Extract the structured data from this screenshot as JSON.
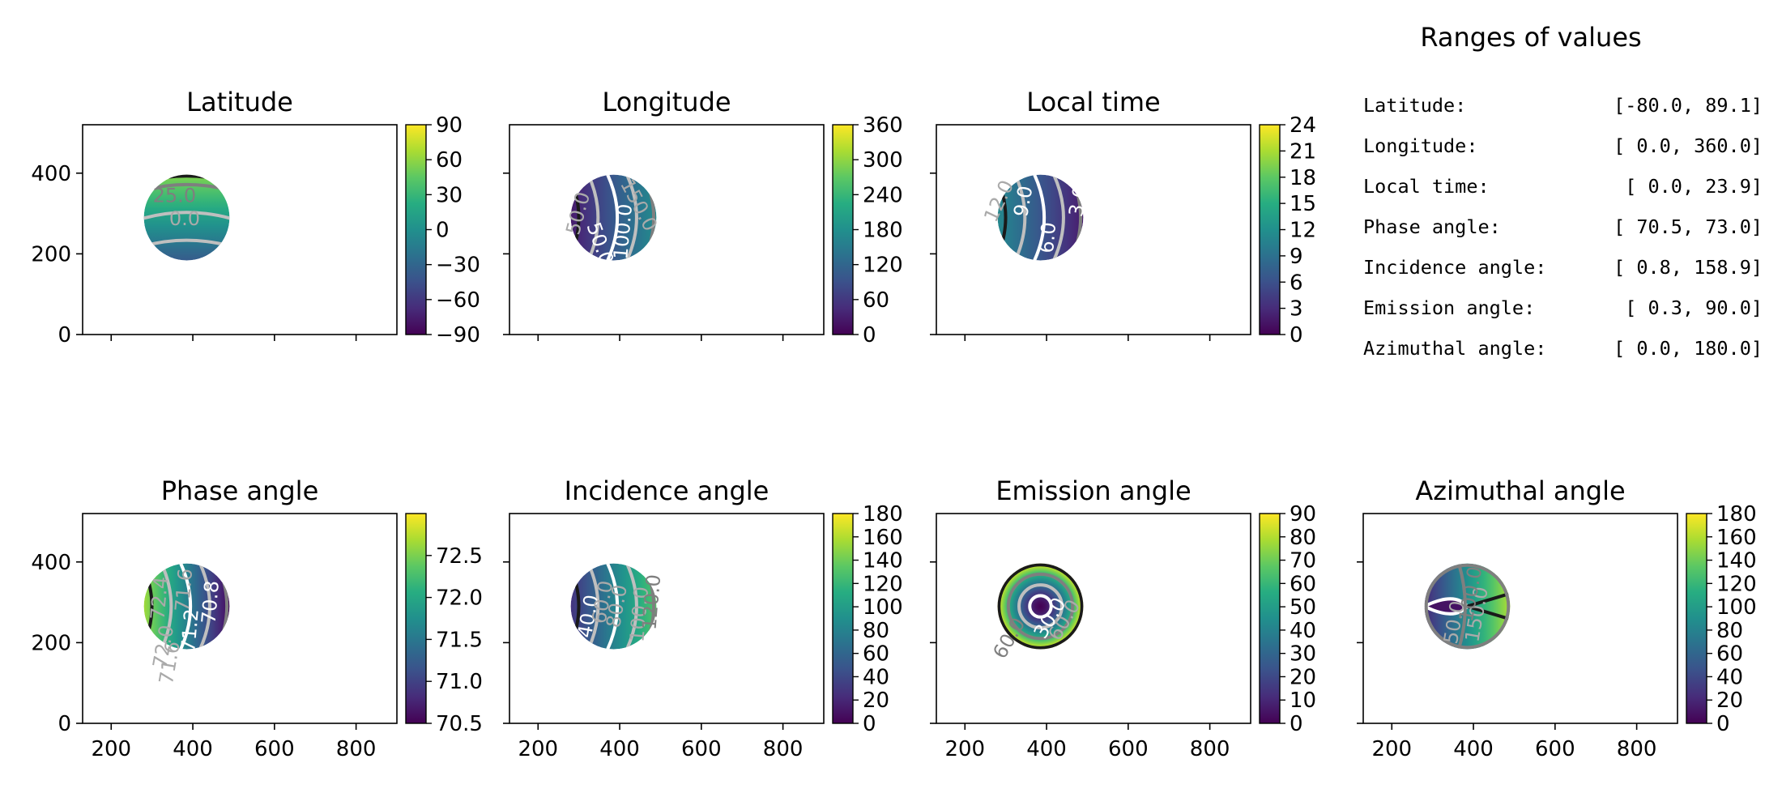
{
  "figure": {
    "width": 2200,
    "height": 1000
  },
  "chart_data": [
    {
      "type": "heatmap",
      "id": "lat",
      "title": "Latitude",
      "xlim": [
        130,
        900
      ],
      "ylim": [
        0,
        520
      ],
      "yticks": [
        0,
        200,
        400
      ],
      "xticks": [
        200,
        400,
        600,
        800
      ],
      "show_xticklabels": false,
      "show_yticklabels": true,
      "disk": {
        "cx": 385,
        "cy": 290,
        "r": 105
      },
      "colorbar": {
        "min": -90,
        "max": 90,
        "ticks": [
          90,
          60,
          30,
          0,
          -30,
          -60,
          -90
        ],
        "tick_labels": [
          "90",
          "60",
          "30",
          "0",
          "−30",
          "−60",
          "−90"
        ]
      },
      "field": {
        "kind": "linear-y",
        "center_value": 10,
        "slope": 0.45
      },
      "contour_labels": [
        {
          "text": "25.0",
          "x": 355,
          "y": 342,
          "color": "#7f7f7f",
          "rot": 0
        },
        {
          "text": "0.0",
          "x": 380,
          "y": 285,
          "color": "#aaaaaa",
          "rot": 0
        }
      ]
    },
    {
      "type": "heatmap",
      "id": "lon",
      "title": "Longitude",
      "xlim": [
        130,
        900
      ],
      "ylim": [
        0,
        520
      ],
      "yticks": [
        0,
        200,
        400
      ],
      "xticks": [
        200,
        400,
        600,
        800
      ],
      "show_xticklabels": false,
      "show_yticklabels": false,
      "disk": {
        "cx": 385,
        "cy": 290,
        "r": 105
      },
      "colorbar": {
        "min": 0,
        "max": 360,
        "ticks": [
          360,
          300,
          240,
          180,
          120,
          60,
          0
        ],
        "tick_labels": [
          "360",
          "300",
          "240",
          "180",
          "120",
          "60",
          "0"
        ]
      },
      "field": {
        "kind": "linear-x",
        "center_value": 100,
        "slope": 0.7
      },
      "contour_labels": [
        {
          "text": "150.0",
          "x": 445,
          "y": 320,
          "color": "#aaaaaa",
          "rot": 62
        },
        {
          "text": "50.0",
          "x": 300,
          "y": 300,
          "color": "#aaaaaa",
          "rot": -75
        },
        {
          "text": "100.0",
          "x": 410,
          "y": 255,
          "color": "#ffffff",
          "rot": -85
        },
        {
          "text": "50.0",
          "x": 350,
          "y": 225,
          "color": "#ffffff",
          "rot": 70
        }
      ]
    },
    {
      "type": "heatmap",
      "id": "lt",
      "title": "Local time",
      "xlim": [
        130,
        900
      ],
      "ylim": [
        0,
        520
      ],
      "yticks": [
        0,
        200,
        400
      ],
      "xticks": [
        200,
        400,
        600,
        800
      ],
      "show_xticklabels": false,
      "show_yticklabels": false,
      "disk": {
        "cx": 385,
        "cy": 290,
        "r": 105
      },
      "colorbar": {
        "min": 0,
        "max": 24,
        "ticks": [
          24,
          21,
          18,
          15,
          12,
          9,
          6,
          3,
          0
        ],
        "tick_labels": [
          "24",
          "21",
          "18",
          "15",
          "12",
          "9",
          "6",
          "3",
          "0"
        ]
      },
      "field": {
        "kind": "linear-x",
        "center_value": 6.5,
        "slope": -0.045
      },
      "contour_labels": [
        {
          "text": "12.0",
          "x": 285,
          "y": 330,
          "color": "#aaaaaa",
          "rot": -65
        },
        {
          "text": "9.0",
          "x": 345,
          "y": 330,
          "color": "#ffffff",
          "rot": -80
        },
        {
          "text": "6.0",
          "x": 405,
          "y": 240,
          "color": "#ffffff",
          "rot": -85
        },
        {
          "text": "3.0",
          "x": 480,
          "y": 330,
          "color": "#ffffff",
          "rot": -80
        }
      ]
    },
    {
      "type": "heatmap",
      "id": "pa",
      "title": "Phase angle",
      "xlim": [
        130,
        900
      ],
      "ylim": [
        0,
        520
      ],
      "yticks": [
        0,
        200,
        400
      ],
      "xticks": [
        200,
        400,
        600,
        800
      ],
      "show_xticklabels": true,
      "show_yticklabels": true,
      "disk": {
        "cx": 385,
        "cy": 290,
        "r": 105
      },
      "colorbar": {
        "min": 70.5,
        "max": 73.0,
        "ticks": [
          72.5,
          72.0,
          71.5,
          71.0,
          70.5
        ],
        "tick_labels": [
          "72.5",
          "72.0",
          "71.5",
          "71.0",
          "70.5"
        ]
      },
      "field": {
        "kind": "linear-x",
        "center_value": 71.6,
        "slope": -0.01
      },
      "contour_labels": [
        {
          "text": "72.4",
          "x": 320,
          "y": 310,
          "color": "#aaaaaa",
          "rot": -85
        },
        {
          "text": "71.6",
          "x": 380,
          "y": 330,
          "color": "#aaaaaa",
          "rot": -85
        },
        {
          "text": "70.8",
          "x": 445,
          "y": 300,
          "color": "#ffffff",
          "rot": -85
        },
        {
          "text": "71.2",
          "x": 395,
          "y": 230,
          "color": "#ffffff",
          "rot": -85
        },
        {
          "text": "72.0",
          "x": 330,
          "y": 190,
          "color": "#aaaaaa",
          "rot": -80
        },
        {
          "text": "71.6",
          "x": 345,
          "y": 150,
          "color": "#aaaaaa",
          "rot": -80
        }
      ]
    },
    {
      "type": "heatmap",
      "id": "inc",
      "title": "Incidence angle",
      "xlim": [
        130,
        900
      ],
      "ylim": [
        0,
        520
      ],
      "yticks": [
        0,
        200,
        400
      ],
      "xticks": [
        200,
        400,
        600,
        800
      ],
      "show_xticklabels": true,
      "show_yticklabels": false,
      "disk": {
        "cx": 385,
        "cy": 290,
        "r": 105
      },
      "colorbar": {
        "min": 0,
        "max": 180,
        "ticks": [
          180,
          160,
          140,
          120,
          100,
          80,
          60,
          40,
          20,
          0
        ],
        "tick_labels": [
          "180",
          "160",
          "140",
          "120",
          "100",
          "80",
          "60",
          "40",
          "20",
          "0"
        ]
      },
      "field": {
        "kind": "linear-x",
        "center_value": 80,
        "slope": 0.5
      },
      "contour_labels": [
        {
          "text": "40.0",
          "x": 325,
          "y": 265,
          "color": "#ffffff",
          "rot": -80
        },
        {
          "text": "60.0",
          "x": 360,
          "y": 300,
          "color": "#aaaaaa",
          "rot": -80
        },
        {
          "text": "80.0",
          "x": 395,
          "y": 290,
          "color": "#aaaaaa",
          "rot": -80
        },
        {
          "text": "100.0",
          "x": 450,
          "y": 270,
          "color": "#aaaaaa",
          "rot": -85
        },
        {
          "text": "120.0",
          "x": 480,
          "y": 300,
          "color": "#7f7f7f",
          "rot": -85
        }
      ]
    },
    {
      "type": "heatmap",
      "id": "em",
      "title": "Emission angle",
      "xlim": [
        130,
        900
      ],
      "ylim": [
        0,
        520
      ],
      "yticks": [
        0,
        200,
        400
      ],
      "xticks": [
        200,
        400,
        600,
        800
      ],
      "show_xticklabels": true,
      "show_yticklabels": false,
      "disk": {
        "cx": 385,
        "cy": 290,
        "r": 105
      },
      "colorbar": {
        "min": 0,
        "max": 90,
        "ticks": [
          90,
          80,
          70,
          60,
          50,
          40,
          30,
          20,
          10,
          0
        ],
        "tick_labels": [
          "90",
          "80",
          "70",
          "60",
          "50",
          "40",
          "30",
          "20",
          "10",
          "0"
        ]
      },
      "field": {
        "kind": "radial",
        "center_value": 0,
        "edge_value": 90
      },
      "contour_labels": [
        {
          "text": "30.0",
          "x": 410,
          "y": 260,
          "color": "#ffffff",
          "rot": -60
        },
        {
          "text": "60.0",
          "x": 445,
          "y": 255,
          "color": "#aaaaaa",
          "rot": -60
        },
        {
          "text": "60.0",
          "x": 310,
          "y": 210,
          "color": "#7f7f7f",
          "rot": -60
        }
      ]
    },
    {
      "type": "heatmap",
      "id": "az",
      "title": "Azimuthal angle",
      "xlim": [
        130,
        900
      ],
      "ylim": [
        0,
        520
      ],
      "yticks": [
        0,
        200,
        400
      ],
      "xticks": [
        200,
        400,
        600,
        800
      ],
      "show_xticklabels": true,
      "show_yticklabels": false,
      "disk": {
        "cx": 385,
        "cy": 290,
        "r": 105
      },
      "colorbar": {
        "min": 0,
        "max": 180,
        "ticks": [
          180,
          160,
          140,
          120,
          100,
          80,
          60,
          40,
          20,
          0
        ],
        "tick_labels": [
          "180",
          "160",
          "140",
          "120",
          "100",
          "80",
          "60",
          "40",
          "20",
          "0"
        ]
      },
      "field": {
        "kind": "azimuth",
        "center_value": 100
      },
      "contour_labels": [
        {
          "text": "50.0",
          "x": 355,
          "y": 250,
          "color": "#aaaaaa",
          "rot": -80
        },
        {
          "text": "150.0",
          "x": 410,
          "y": 270,
          "color": "#aaaaaa",
          "rot": -80
        },
        {
          "text": "100.0",
          "x": 395,
          "y": 320,
          "color": "#7f7f7f",
          "rot": -80
        }
      ]
    }
  ],
  "ranges_panel": {
    "title": "Ranges of values",
    "rows": [
      {
        "label": "Latitude:",
        "value": "[-80.0,  89.1]"
      },
      {
        "label": "Longitude:",
        "value": "[  0.0, 360.0]"
      },
      {
        "label": "Local time:",
        "value": "[  0.0,  23.9]"
      },
      {
        "label": "Phase angle:",
        "value": "[ 70.5,  73.0]"
      },
      {
        "label": "Incidence angle:",
        "value": "[  0.8, 158.9]"
      },
      {
        "label": "Emission angle:",
        "value": "[  0.3,  90.0]"
      },
      {
        "label": "Azimuthal angle:",
        "value": "[  0.0, 180.0]"
      }
    ]
  },
  "colormap": "viridis",
  "colors": {
    "axis": "#000000",
    "contour_dark": "#1a1a1a",
    "contour_mid": "#7f7f7f",
    "contour_light": "#bfbfbf",
    "contour_white": "#ffffff"
  }
}
